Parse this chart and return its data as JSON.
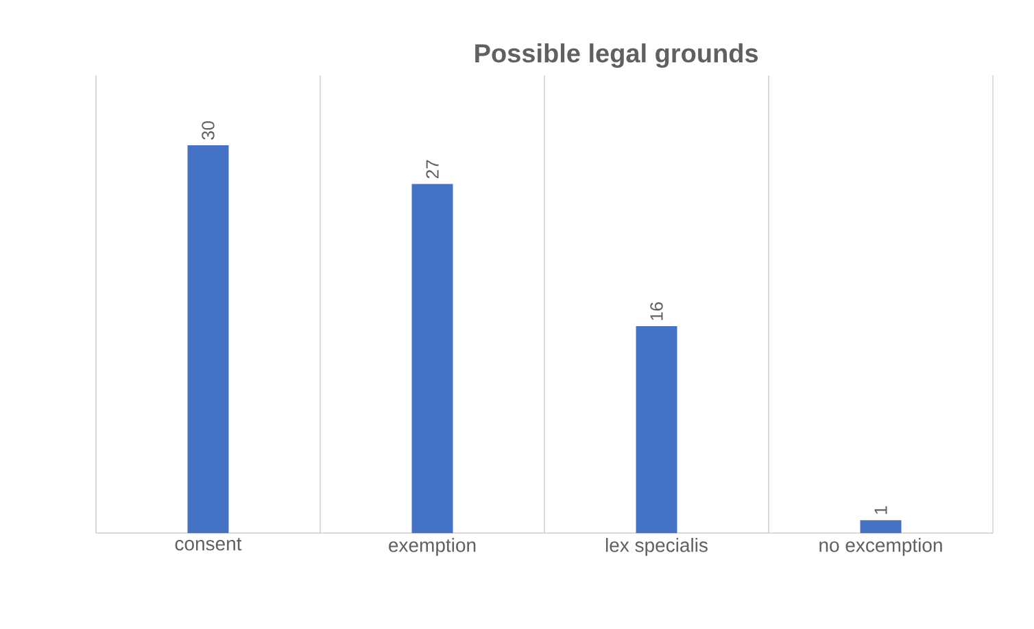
{
  "chart_data": {
    "type": "bar",
    "title": "Possible legal grounds",
    "categories": [
      "consent",
      "exemption",
      "lex specialis",
      "no excemption"
    ],
    "values": [
      30,
      27,
      16,
      1
    ],
    "color": "#4472c4",
    "data_labels": true,
    "grid": "x"
  }
}
